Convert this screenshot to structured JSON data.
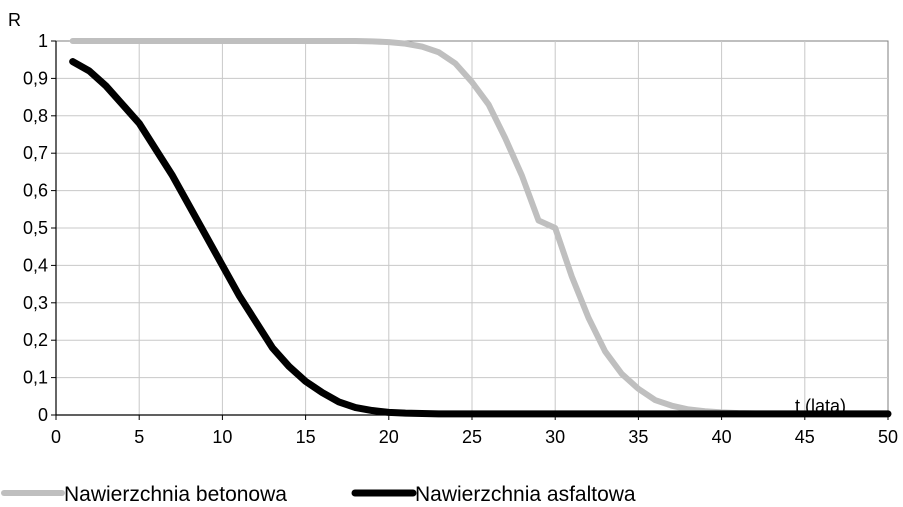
{
  "chart_data": {
    "type": "line",
    "ylabel": "R",
    "xlabel": "t (lata)",
    "xlim": [
      0,
      50
    ],
    "ylim": [
      0,
      1
    ],
    "x_ticks": [
      "0",
      "5",
      "10",
      "15",
      "20",
      "25",
      "30",
      "35",
      "40",
      "45",
      "50"
    ],
    "y_ticks": [
      "0",
      "0,1",
      "0,2",
      "0,3",
      "0,4",
      "0,5",
      "0,6",
      "0,7",
      "0,8",
      "0,9",
      "1"
    ],
    "grid": true,
    "legend_position": "bottom",
    "x": [
      1,
      2,
      3,
      4,
      5,
      6,
      7,
      8,
      9,
      10,
      11,
      12,
      13,
      14,
      15,
      16,
      17,
      18,
      19,
      20,
      21,
      22,
      23,
      24,
      25,
      26,
      27,
      28,
      29,
      30,
      31,
      32,
      33,
      34,
      35,
      36,
      37,
      38,
      39,
      40,
      41,
      42,
      43,
      44,
      45,
      46,
      47,
      48,
      49,
      50
    ],
    "series": [
      {
        "name": "Nawierzchnia betonowa",
        "color": "#bfbfbf",
        "values": [
          1,
          1,
          1,
          1,
          1,
          1,
          1,
          1,
          1,
          1,
          1,
          1,
          1,
          1,
          1,
          1,
          1,
          1,
          0.999,
          0.997,
          0.993,
          0.985,
          0.97,
          0.94,
          0.89,
          0.83,
          0.74,
          0.64,
          0.52,
          0.5,
          0.37,
          0.26,
          0.17,
          0.11,
          0.07,
          0.04,
          0.025,
          0.015,
          0.01,
          0.007,
          0.005,
          0.004,
          0.004,
          0.003,
          0.003,
          0.003,
          0.003,
          0.003,
          0.003,
          0.003
        ]
      },
      {
        "name": "Nawierzchnia asfaltowa",
        "color": "#000000",
        "values": [
          0.945,
          0.92,
          0.88,
          0.83,
          0.78,
          0.71,
          0.64,
          0.56,
          0.48,
          0.4,
          0.32,
          0.25,
          0.18,
          0.13,
          0.09,
          0.06,
          0.035,
          0.02,
          0.012,
          0.007,
          0.005,
          0.004,
          0.003,
          0.003,
          0.003,
          0.003,
          0.003,
          0.003,
          0.003,
          0.003,
          0.003,
          0.003,
          0.003,
          0.003,
          0.003,
          0.003,
          0.003,
          0.003,
          0.003,
          0.003,
          0.003,
          0.003,
          0.003,
          0.003,
          0.003,
          0.003,
          0.003,
          0.003,
          0.003,
          0.003
        ]
      }
    ]
  }
}
